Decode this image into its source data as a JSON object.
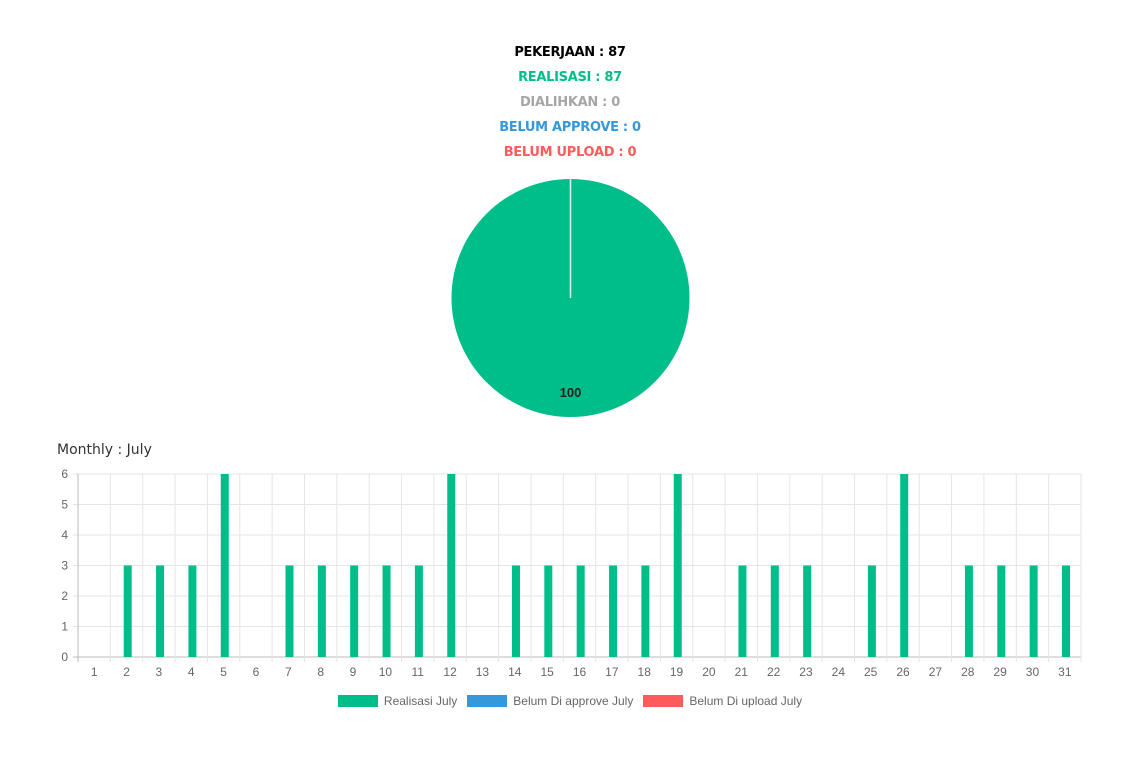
{
  "stats": [
    {
      "label": "PEKERJAAN : 87",
      "color": "#000000"
    },
    {
      "label": "REALISASI : 87",
      "color": "#00be8a"
    },
    {
      "label": "DIALIHKAN : 0",
      "color": "#a6a6a6"
    },
    {
      "label": "BELUM APPROVE : 0",
      "color": "#3498db"
    },
    {
      "label": "BELUM UPLOAD : 0",
      "color": "#ff5b5b"
    }
  ],
  "pie": {
    "type": "pie",
    "slices": [
      {
        "value": 100,
        "label": "100",
        "color": "#00be8a"
      }
    ]
  },
  "monthly_title": "Monthly : July",
  "chart_data": {
    "type": "bar",
    "categories": [
      "1",
      "2",
      "3",
      "4",
      "5",
      "6",
      "7",
      "8",
      "9",
      "10",
      "11",
      "12",
      "13",
      "14",
      "15",
      "16",
      "17",
      "18",
      "19",
      "20",
      "21",
      "22",
      "23",
      "24",
      "25",
      "26",
      "27",
      "28",
      "29",
      "30",
      "31"
    ],
    "series": [
      {
        "name": "Realisasi July",
        "color": "#00be8a",
        "values": [
          0,
          3,
          3,
          3,
          6,
          0,
          3,
          3,
          3,
          3,
          3,
          6,
          0,
          3,
          3,
          3,
          3,
          3,
          6,
          0,
          3,
          3,
          3,
          0,
          3,
          6,
          0,
          3,
          3,
          3,
          3
        ]
      },
      {
        "name": "Belum Di approve July",
        "color": "#3498db",
        "values": [
          0,
          0,
          0,
          0,
          0,
          0,
          0,
          0,
          0,
          0,
          0,
          0,
          0,
          0,
          0,
          0,
          0,
          0,
          0,
          0,
          0,
          0,
          0,
          0,
          0,
          0,
          0,
          0,
          0,
          0,
          0
        ]
      },
      {
        "name": "Belum Di upload July",
        "color": "#ff5b5b",
        "values": [
          0,
          0,
          0,
          0,
          0,
          0,
          0,
          0,
          0,
          0,
          0,
          0,
          0,
          0,
          0,
          0,
          0,
          0,
          0,
          0,
          0,
          0,
          0,
          0,
          0,
          0,
          0,
          0,
          0,
          0,
          0
        ]
      }
    ],
    "ylim": [
      0,
      6
    ],
    "yticks": [
      "0",
      "1",
      "2",
      "3",
      "4",
      "5",
      "6"
    ],
    "grid": true,
    "legend": "bottom"
  },
  "legend": [
    {
      "label": "Realisasi July",
      "color": "#00be8a"
    },
    {
      "label": "Belum Di approve July",
      "color": "#3498db"
    },
    {
      "label": "Belum Di upload July",
      "color": "#ff5b5b"
    }
  ]
}
